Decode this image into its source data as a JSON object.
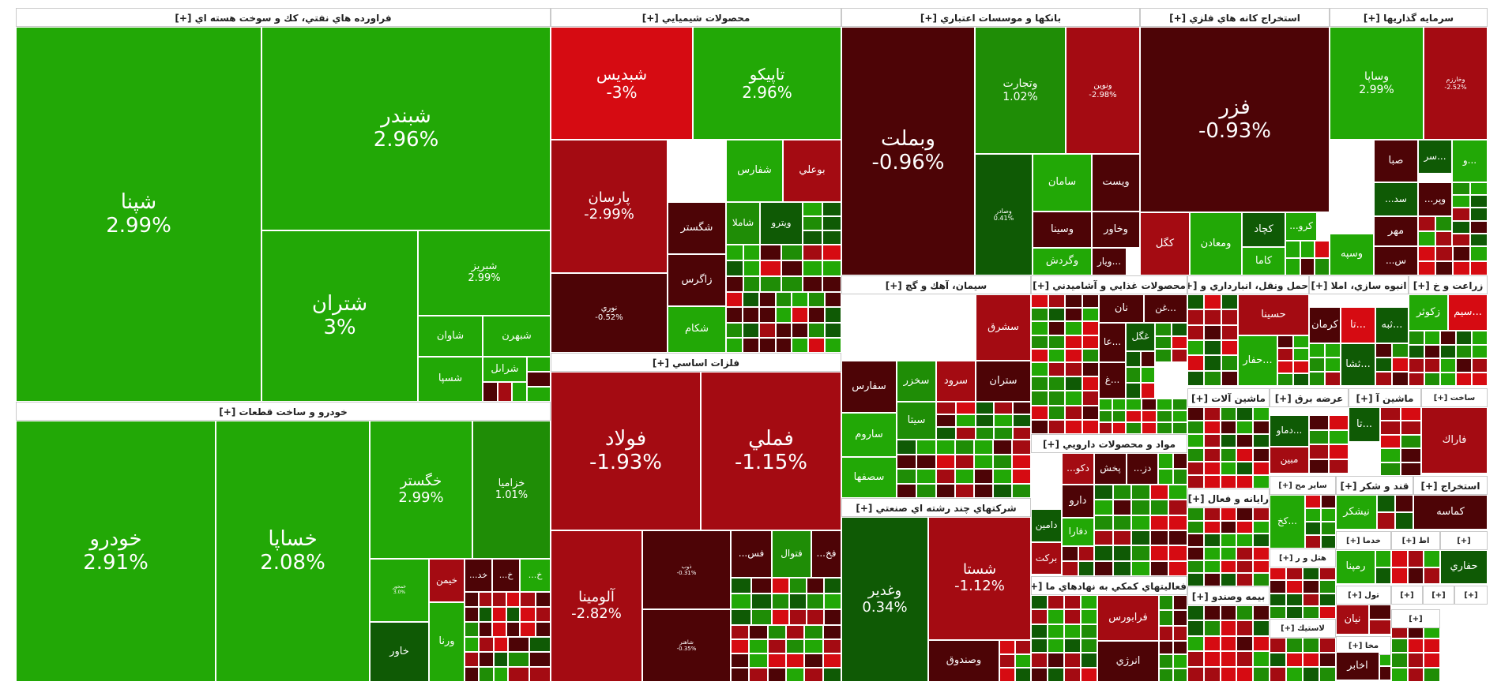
{
  "colors": {
    "strong_up": "#22a806",
    "mid_up": "#1f8d06",
    "dark_up": "#0f5a05",
    "strong_down": "#d60b12",
    "mid_down": "#a40b12",
    "dark_down": "#4d0406"
  },
  "sectors": [
    {
      "id": "oil",
      "title": "فراورده هاي نفتي، كك و سوخت هسته اي [+]",
      "tiles": [
        {
          "symbol": "شپنا",
          "change": "2.99%",
          "color": "strong_up"
        },
        {
          "symbol": "شبندر",
          "change": "2.96%",
          "color": "strong_up"
        },
        {
          "symbol": "شتران",
          "change": "3%",
          "color": "strong_up"
        },
        {
          "symbol": "شبريز",
          "change": "2.99%",
          "color": "strong_up"
        },
        {
          "symbol": "شاوان",
          "change": "",
          "color": "strong_up"
        },
        {
          "symbol": "شبهرن",
          "change": "",
          "color": "strong_up"
        },
        {
          "symbol": "شراىل",
          "change": "",
          "color": "strong_up"
        },
        {
          "symbol": "شسپا",
          "change": "",
          "color": "strong_up"
        }
      ]
    },
    {
      "id": "auto",
      "title": "خودرو و ساخت قطعات [+]",
      "tiles": [
        {
          "symbol": "خودرو",
          "change": "2.91%",
          "color": "strong_up"
        },
        {
          "symbol": "خساپا",
          "change": "2.08%",
          "color": "strong_up"
        },
        {
          "symbol": "خگستر",
          "change": "2.99%",
          "color": "strong_up"
        },
        {
          "symbol": "خزاميا",
          "change": "1.01%",
          "color": "mid_up"
        },
        {
          "symbol": "خمحور",
          "change": "3.0%",
          "color": "strong_up"
        },
        {
          "symbol": "خيمن",
          "change": "",
          "color": "mid_down"
        },
        {
          "symbol": "خاور",
          "change": "",
          "color": "dark_up"
        },
        {
          "symbol": "ورنا",
          "change": "",
          "color": "strong_up"
        },
        {
          "symbol": "خد...",
          "change": "",
          "color": "dark_down"
        },
        {
          "symbol": "خ...",
          "change": "",
          "color": "dark_down"
        },
        {
          "symbol": "خ...",
          "change": "",
          "color": "strong_up"
        }
      ]
    },
    {
      "id": "chem",
      "title": "محصولات شيميايي [+]",
      "tiles": [
        {
          "symbol": "شبديس",
          "change": "-3%",
          "color": "strong_down"
        },
        {
          "symbol": "تاپيكو",
          "change": "2.96%",
          "color": "strong_up"
        },
        {
          "symbol": "پارسان",
          "change": "-2.99%",
          "color": "mid_down"
        },
        {
          "symbol": "نوري",
          "change": "-0.52%",
          "color": "dark_down"
        },
        {
          "symbol": "شفارس",
          "change": "",
          "color": "strong_up"
        },
        {
          "symbol": "بوعلي",
          "change": "",
          "color": "mid_down"
        },
        {
          "symbol": "شگستر",
          "change": "",
          "color": "dark_down"
        },
        {
          "symbol": "شاملا",
          "change": "",
          "color": "mid_up"
        },
        {
          "symbol": "ويترو",
          "change": "",
          "color": "dark_up"
        },
        {
          "symbol": "زاگرس",
          "change": "",
          "color": "dark_down"
        },
        {
          "symbol": "شكام",
          "change": "",
          "color": "strong_up"
        }
      ]
    },
    {
      "id": "metals",
      "title": "فلزات اساسي [+]",
      "tiles": [
        {
          "symbol": "فولاد",
          "change": "-1.93%",
          "color": "mid_down"
        },
        {
          "symbol": "فملي",
          "change": "-1.15%",
          "color": "mid_down"
        },
        {
          "symbol": "آلومينا",
          "change": "-2.82%",
          "color": "mid_down"
        },
        {
          "symbol": "ذوب",
          "change": "-0.31%",
          "color": "dark_down"
        },
        {
          "symbol": "فس...",
          "change": "",
          "color": "dark_down"
        },
        {
          "symbol": "فتوال",
          "change": "",
          "color": "mid_up"
        },
        {
          "symbol": "فخ...",
          "change": "",
          "color": "dark_down"
        },
        {
          "symbol": "شاهنر",
          "change": "-0.35%",
          "color": "dark_down"
        }
      ]
    },
    {
      "id": "banks",
      "title": "بانكها و موسسات اعتباري [+]",
      "tiles": [
        {
          "symbol": "وبملت",
          "change": "-0.96%",
          "color": "dark_down"
        },
        {
          "symbol": "وتجارت",
          "change": "1.02%",
          "color": "mid_up"
        },
        {
          "symbol": "ونوين",
          "change": "-2.98%",
          "color": "mid_down"
        },
        {
          "symbol": "وصادر",
          "change": "0.41%",
          "color": "dark_up"
        },
        {
          "symbol": "سامان",
          "change": "",
          "color": "strong_up"
        },
        {
          "symbol": "ويست",
          "change": "",
          "color": "dark_down"
        },
        {
          "symbol": "وسينا",
          "change": "",
          "color": "dark_down"
        },
        {
          "symbol": "وخاور",
          "change": "",
          "color": "dark_down"
        },
        {
          "symbol": "وگردش",
          "change": "",
          "color": "strong_up"
        },
        {
          "symbol": "...ويار",
          "change": "",
          "color": "dark_down"
        }
      ]
    },
    {
      "id": "mining",
      "title": "استخراج كانه هاي فلزي [+]",
      "tiles": [
        {
          "symbol": "فزر",
          "change": "-0.93%",
          "color": "dark_down"
        },
        {
          "symbol": "كگل",
          "change": "",
          "color": "mid_down"
        },
        {
          "symbol": "ومعادن",
          "change": "",
          "color": "strong_up"
        },
        {
          "symbol": "كچاد",
          "change": "",
          "color": "dark_up"
        },
        {
          "symbol": "كرو...",
          "change": "",
          "color": "strong_up"
        },
        {
          "symbol": "كاما",
          "change": "",
          "color": "strong_up"
        }
      ]
    },
    {
      "id": "invest",
      "title": "سرمايه گذاريها [+]",
      "tiles": [
        {
          "symbol": "وساپا",
          "change": "2.99%",
          "color": "strong_up"
        },
        {
          "symbol": "وخارزم",
          "change": "-2.52%",
          "color": "mid_down"
        },
        {
          "symbol": "صبا",
          "change": "",
          "color": "dark_down"
        },
        {
          "symbol": "...سر",
          "change": "",
          "color": "dark_up"
        },
        {
          "symbol": "...و",
          "change": "",
          "color": "strong_up"
        },
        {
          "symbol": "سد...",
          "change": "",
          "color": "dark_up"
        },
        {
          "symbol": "وپر...",
          "change": "",
          "color": "dark_down"
        },
        {
          "symbol": "مهر",
          "change": "",
          "color": "dark_down"
        },
        {
          "symbol": "وسپه",
          "change": "",
          "color": "strong_up"
        },
        {
          "symbol": "س...",
          "change": "",
          "color": "dark_down"
        }
      ]
    },
    {
      "id": "cement",
      "title": "سيمان، آهك و گچ [+]",
      "tiles": [
        {
          "symbol": "سشرق",
          "change": "",
          "color": "mid_down"
        },
        {
          "symbol": "سفارس",
          "change": "",
          "color": "dark_down"
        },
        {
          "symbol": "سخزر",
          "change": "",
          "color": "mid_up"
        },
        {
          "symbol": "سرود",
          "change": "",
          "color": "mid_down"
        },
        {
          "symbol": "ستران",
          "change": "",
          "color": "dark_down"
        },
        {
          "symbol": "سيتا",
          "change": "",
          "color": "mid_up"
        },
        {
          "symbol": "ساروم",
          "change": "",
          "color": "strong_up"
        },
        {
          "symbol": "سصفها",
          "change": "",
          "color": "strong_up"
        }
      ]
    },
    {
      "id": "food",
      "title": "محصولات غذايي و آشاميدني [+]",
      "tiles": [
        {
          "symbol": "نان",
          "change": "",
          "color": "dark_down"
        },
        {
          "symbol": "غگل",
          "change": "",
          "color": "dark_up"
        },
        {
          "symbol": "...غن",
          "change": "",
          "color": "dark_down"
        },
        {
          "symbol": "...عا",
          "change": "",
          "color": "dark_down"
        },
        {
          "symbol": "...غ",
          "change": "",
          "color": "dark_down"
        }
      ]
    },
    {
      "id": "pharma",
      "title": "مواد و محصولات دارويي [+]",
      "tiles": [
        {
          "symbol": "دكو...",
          "change": "",
          "color": "mid_down"
        },
        {
          "symbol": "پخش",
          "change": "",
          "color": "dark_down"
        },
        {
          "symbol": "دز...",
          "change": "",
          "color": "dark_down"
        },
        {
          "symbol": "دارو",
          "change": "",
          "color": "dark_down"
        },
        {
          "symbol": "دامين",
          "change": "",
          "color": "dark_up"
        },
        {
          "symbol": "دفارا",
          "change": "",
          "color": "strong_up"
        },
        {
          "symbol": "بركت",
          "change": "",
          "color": "mid_down"
        }
      ]
    },
    {
      "id": "conglomerate",
      "title": "شركتهاي چند رشته اي صنعتي [+]",
      "tiles": [
        {
          "symbol": "وغدير",
          "change": "0.34%",
          "color": "dark_up"
        },
        {
          "symbol": "شستا",
          "change": "-1.12%",
          "color": "mid_down"
        },
        {
          "symbol": "وصندوق",
          "change": "",
          "color": "dark_down"
        }
      ]
    },
    {
      "id": "finance_aux",
      "title": "فعاليتهاي كمكي به نهادهاي ما [+]",
      "tiles": [
        {
          "symbol": "فرابورس",
          "change": "",
          "color": "mid_down"
        },
        {
          "symbol": "انرژي",
          "change": "",
          "color": "dark_down"
        }
      ]
    },
    {
      "id": "transport",
      "title": "حمل ونقل، انبارداري و [+]",
      "tiles": [
        {
          "symbol": "حسينا",
          "change": "",
          "color": "mid_down"
        },
        {
          "symbol": "...حفار",
          "change": "",
          "color": "strong_up"
        }
      ]
    },
    {
      "id": "construction",
      "title": "انبوه سازي، املا [+]",
      "tiles": [
        {
          "symbol": "كرمان",
          "change": "",
          "color": "dark_down"
        },
        {
          "symbol": "...ثبه",
          "change": "",
          "color": "dark_up"
        },
        {
          "symbol": "...تا",
          "change": "",
          "color": "strong_down"
        },
        {
          "symbol": "...ثشا",
          "change": "",
          "color": "dark_up"
        }
      ]
    },
    {
      "id": "agri",
      "title": "زراعت و خ [+]",
      "tiles": [
        {
          "symbol": "زكوثر",
          "change": "",
          "color": "strong_up"
        },
        {
          "symbol": "...سيم",
          "change": "",
          "color": "strong_down"
        }
      ]
    },
    {
      "id": "machinery",
      "title": "ماشين آلات [+]",
      "tiles": []
    },
    {
      "id": "power",
      "title": "عرضه برق [+]",
      "tiles": [
        {
          "symbol": "...دماو",
          "change": "",
          "color": "dark_up"
        },
        {
          "symbol": "مبين",
          "change": "",
          "color": "mid_down"
        }
      ]
    },
    {
      "id": "machinery2",
      "title": "ماشين آ [+]",
      "tiles": [
        {
          "symbol": "...تا",
          "change": "",
          "color": "dark_up"
        }
      ]
    },
    {
      "id": "make",
      "title": "ساخت [+]",
      "tiles": [
        {
          "symbol": "فاراك",
          "change": "",
          "color": "mid_down"
        }
      ]
    },
    {
      "id": "software",
      "title": "رايانه و فعال [+]",
      "tiles": []
    },
    {
      "id": "otherore",
      "title": "ساير مح [+]",
      "tiles": [
        {
          "symbol": "...كخ",
          "change": "",
          "color": "strong_up"
        }
      ]
    },
    {
      "id": "sugar",
      "title": "قند و شكر [+]",
      "tiles": [
        {
          "symbol": "نيشكر",
          "change": "",
          "color": "strong_up"
        }
      ]
    },
    {
      "id": "extract",
      "title": "استخراج [+]",
      "tiles": [
        {
          "symbol": "كماسه",
          "change": "",
          "color": "dark_down"
        }
      ]
    },
    {
      "id": "hotel",
      "title": "هتل و ر [+]",
      "tiles": []
    },
    {
      "id": "tele",
      "title": "خدما [+]",
      "tiles": [
        {
          "symbol": "رمپنا",
          "change": "",
          "color": "strong_up"
        }
      ]
    },
    {
      "id": "ertebat",
      "title": "اط [+]",
      "tiles": []
    },
    {
      "id": "one",
      "title": "[+]",
      "tiles": [
        {
          "symbol": "حفاري",
          "change": "",
          "color": "dark_up"
        }
      ]
    },
    {
      "id": "insurance",
      "title": "بيمه وصندو [+]",
      "tiles": []
    },
    {
      "id": "tools",
      "title": "تول [+]",
      "tiles": [
        {
          "symbol": "نيان",
          "change": "",
          "color": "mid_down"
        }
      ]
    },
    {
      "id": "plastic",
      "title": "لاستيك [+]",
      "tiles": []
    },
    {
      "id": "makha",
      "title": "مخا [+]",
      "tiles": [
        {
          "symbol": "اخابر",
          "change": "",
          "color": "dark_down"
        }
      ]
    },
    {
      "id": "misc1",
      "title": "[+]",
      "tiles": []
    },
    {
      "id": "misc2",
      "title": "[+]",
      "tiles": []
    },
    {
      "id": "misc3",
      "title": "[+]",
      "tiles": []
    },
    {
      "id": "misc4",
      "title": "[+]",
      "tiles": []
    }
  ]
}
